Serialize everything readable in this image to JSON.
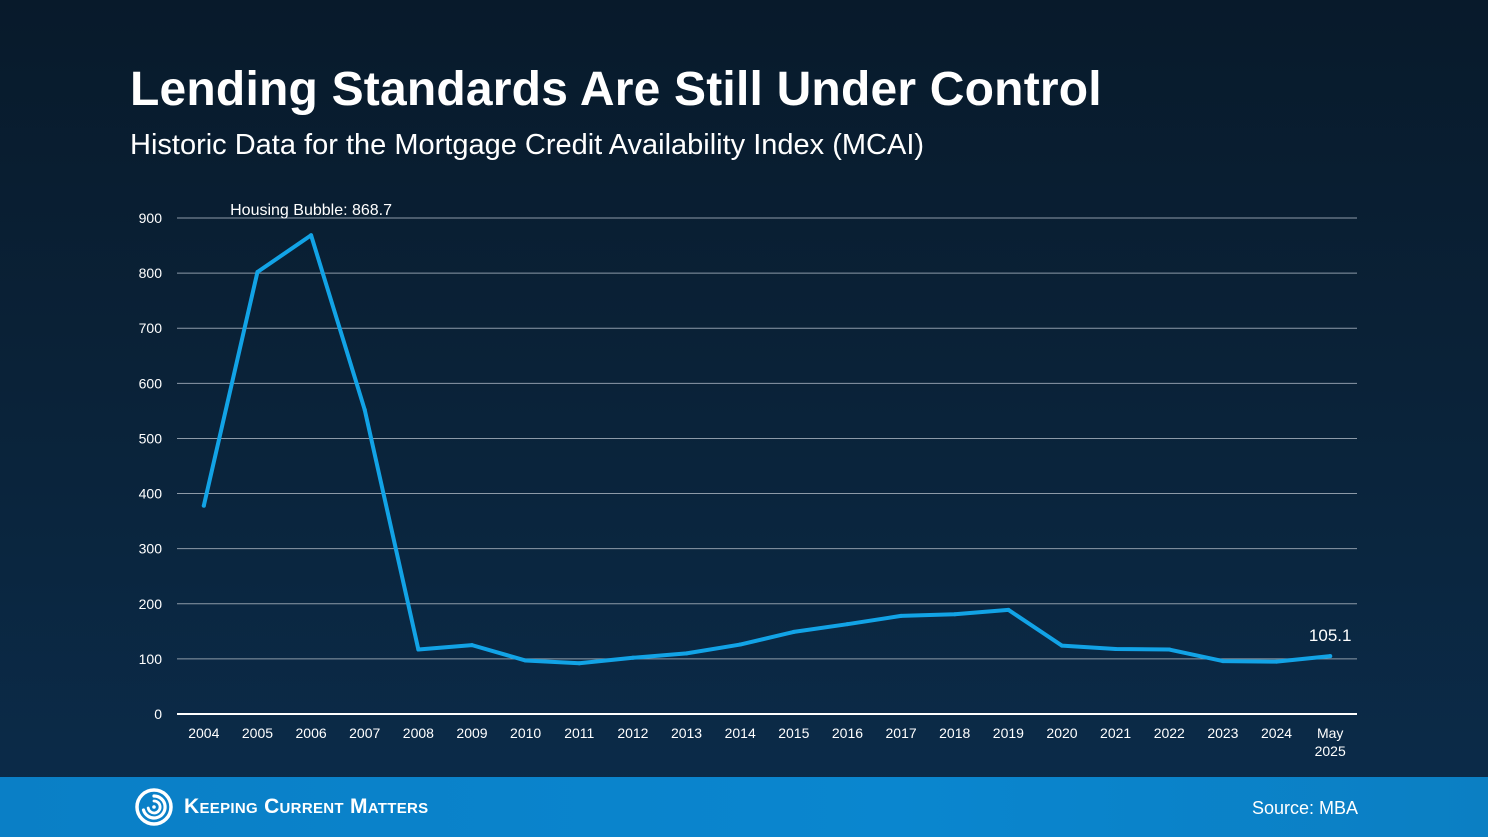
{
  "header": {
    "title": "Lending Standards Are Still Under Control",
    "subtitle": "Historic Data for the Mortgage Credit Availability Index (MCAI)"
  },
  "footer": {
    "brand": "Keeping Current Matters",
    "source": "Source: MBA"
  },
  "colors": {
    "line": "#12a3e6",
    "grid": "#8d9aa8",
    "axis": "#ffffff"
  },
  "chart_data": {
    "type": "line",
    "title": "Lending Standards Are Still Under Control",
    "subtitle": "Historic Data for the Mortgage Credit Availability Index (MCAI)",
    "xlabel": "",
    "ylabel": "",
    "ylim": [
      0,
      900
    ],
    "yticks": [
      0,
      100,
      200,
      300,
      400,
      500,
      600,
      700,
      800,
      900
    ],
    "grid": true,
    "categories": [
      "2004",
      "2005",
      "2006",
      "2007",
      "2008",
      "2009",
      "2010",
      "2011",
      "2012",
      "2013",
      "2014",
      "2015",
      "2016",
      "2017",
      "2018",
      "2019",
      "2020",
      "2021",
      "2022",
      "2023",
      "2024",
      "May 2025"
    ],
    "series": [
      {
        "name": "MCAI",
        "values": [
          378,
          802,
          868.7,
          552,
          117,
          125,
          97,
          92,
          102,
          110,
          126,
          149,
          163,
          178,
          181,
          189,
          124,
          118,
          117,
          96,
          95,
          105.1
        ]
      }
    ],
    "annotations": [
      {
        "label": "Housing Bubble: 868.7",
        "category": "2006",
        "value": 868.7
      },
      {
        "label": "105.1",
        "category": "May 2025",
        "value": 105.1
      }
    ]
  }
}
